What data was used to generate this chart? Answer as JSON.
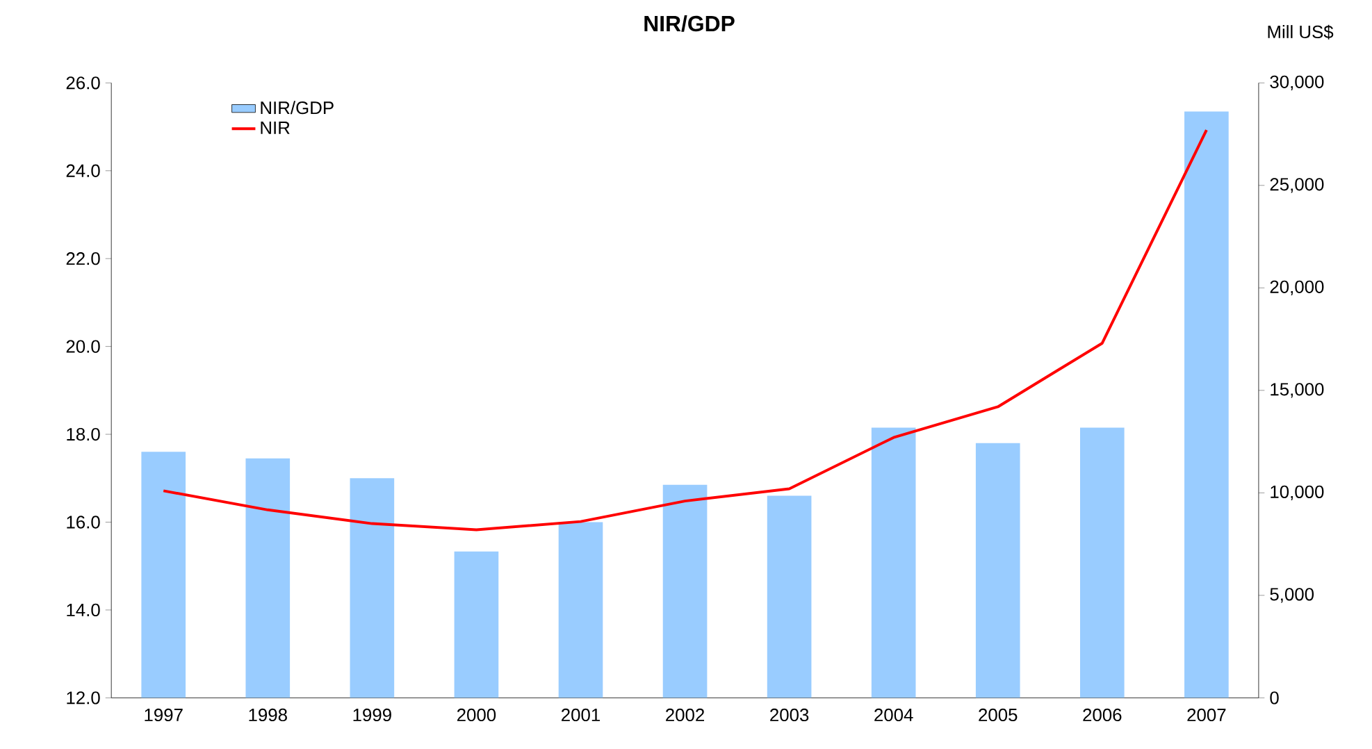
{
  "chart_data": {
    "type": "bar",
    "title": "NIR/GDP",
    "y2label": "Mill US$",
    "categories": [
      "1997",
      "1998",
      "1999",
      "2000",
      "2001",
      "2002",
      "2003",
      "2004",
      "2005",
      "2006",
      "2007"
    ],
    "series": [
      {
        "name": "NIR/GDP",
        "color": "#99ccff",
        "values": [
          17.6,
          17.45,
          17.0,
          15.33,
          16.0,
          16.85,
          16.6,
          18.15,
          17.8,
          18.15,
          25.35
        ]
      },
      {
        "name": "NIR",
        "type": "line",
        "axis": "y2",
        "color": "#ff0000",
        "values": [
          10100,
          9170,
          8500,
          8200,
          8600,
          9600,
          10200,
          12700,
          14200,
          17300,
          27700
        ]
      }
    ],
    "ylim": [
      12,
      26
    ],
    "yticks": [
      {
        "value": 12,
        "label": "12.0"
      },
      {
        "value": 14,
        "label": "14.0"
      },
      {
        "value": 16,
        "label": "16.0"
      },
      {
        "value": 18,
        "label": "18.0"
      },
      {
        "value": 20,
        "label": "20.0"
      },
      {
        "value": 22,
        "label": "22.0"
      },
      {
        "value": 24,
        "label": "24.0"
      },
      {
        "value": 26,
        "label": "26.0"
      }
    ],
    "y2lim": [
      0,
      30000
    ],
    "y2ticks": [
      0,
      {
        "value": 5000,
        "label": "5,000"
      },
      {
        "value": 10000,
        "label": "10,000"
      },
      {
        "value": 15000,
        "label": "15,000"
      },
      {
        "value": 20000,
        "label": "20,000"
      },
      {
        "value": 25000,
        "label": "25,000"
      },
      {
        "value": 30000,
        "label": "30,000"
      }
    ],
    "grid": false,
    "legend": "top left",
    "marker": "none"
  }
}
